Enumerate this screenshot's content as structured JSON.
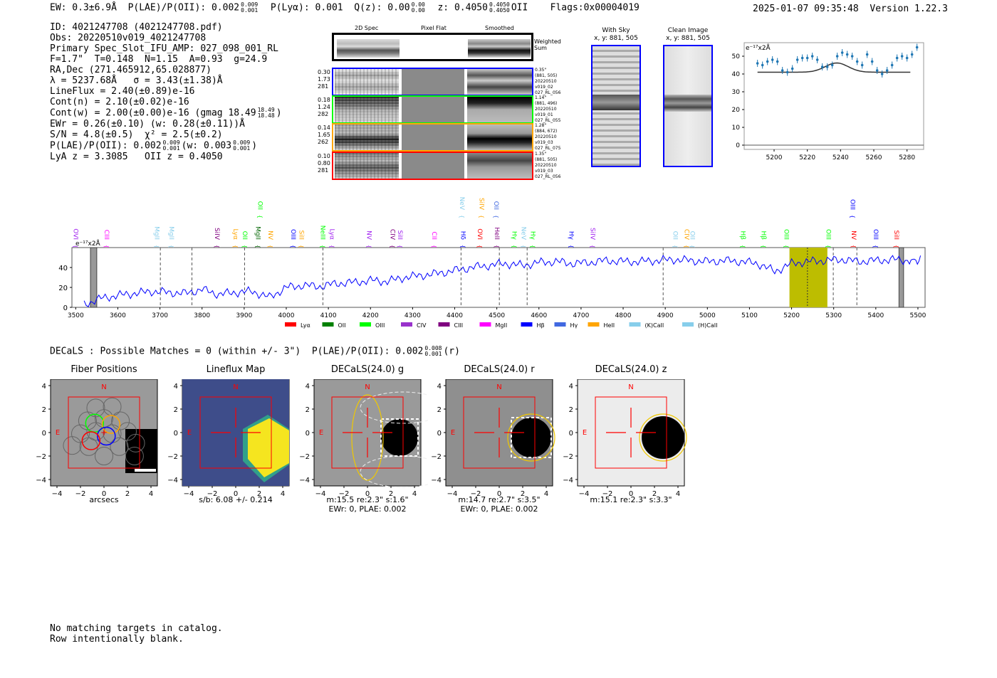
{
  "header": {
    "ew": "EW: 0.3±6.9Å",
    "plae_label": "P(LAE)/P(OII): 0.002",
    "plae_hi": "0.009",
    "plae_lo": "0.001",
    "plya": "P(Lyα): 0.001",
    "qz": "Q(z): 0.00",
    "qz_hi": "0.00",
    "qz_lo": "0.00",
    "z": "z: 0.4050",
    "z_hi": "0.4050",
    "z_lo": "0.4050",
    "z_line": "OII",
    "flags": "Flags:0x00004019",
    "timestamp": "2025-01-07 09:35:48",
    "version": "Version 1.22.3"
  },
  "info": {
    "id": "ID: 4021247708 (4021247708.pdf)",
    "obs": "Obs: 20220510v019_4021247708",
    "primary": "Primary Spec_Slot_IFU_AMP: 027_098_001_RL",
    "params": "F=1.7\"  T=0.148  N=1.15  A=0.93  g=24.9",
    "radec": "RA,Dec (271.465912,65.028877)",
    "lambda": "λ = 5237.68Å   σ = 3.43(±1.38)Å",
    "lineflux": "LineFlux = 2.40(±0.89)e-16",
    "contn": "Cont(n) = 2.10(±0.02)e-16",
    "contw": "Cont(w) = 2.00(±0.00)e-16 (gmag 18.49",
    "contw_hi": "18.49",
    "contw_lo": "18.48",
    "contw_end": ")",
    "ewr": "EWr = 0.26(±0.10) (w: 0.28(±0.11))Å",
    "sn": "S/N = 4.8(±0.5)  χ² = 2.5(±0.2)",
    "plae": "P(LAE)/P(OII): 0.002",
    "plae_hi": "0.009",
    "plae_lo": "0.001",
    "plae_w": "(w: 0.003",
    "plae_w_hi": "0.009",
    "plae_w_lo": "0.001",
    "plae_w_end": ")",
    "z": "LyA z = 3.3085   OII z = 0.4050"
  },
  "cutouts": {
    "headers": [
      "2D Spec",
      "Pixel Flat",
      "Smoothed"
    ],
    "weighted_label": "Weighted Sum",
    "fibers": [
      {
        "color": "#0000ff",
        "stats": [
          "0.30",
          "1.73",
          "281"
        ],
        "meta": [
          "0.35\"",
          "(881, 505)",
          "20220510",
          "v019_02",
          "027_RL_056"
        ]
      },
      {
        "color": "#00ff00",
        "stats": [
          "0.18",
          "1.24",
          "282"
        ],
        "meta": [
          "1.14\"",
          "(881, 496)",
          "20220510",
          "v019_01",
          "027_RL_055"
        ]
      },
      {
        "color": "#ffa500",
        "stats": [
          "0.14",
          "1.65",
          "262"
        ],
        "meta": [
          "1.28\"",
          "(884, 672)",
          "20220510",
          "v019_03",
          "027_RL_075"
        ]
      },
      {
        "color": "#ff0000",
        "stats": [
          "0.10",
          "0.80",
          "281"
        ],
        "meta": [
          "1.35\"",
          "(881, 505)",
          "20220510",
          "v019_03",
          "027_RL_056"
        ]
      }
    ]
  },
  "sky": {
    "with_sky_title": "With Sky",
    "with_sky_xy": "x, y: 881, 505",
    "clean_title": "Clean Image",
    "clean_xy": "x, y: 881, 505"
  },
  "chart_data": [
    {
      "type": "scatter",
      "name": "line-fit-inset",
      "unit_label": "e⁻¹⁷x2Å",
      "xlim": [
        5182,
        5290
      ],
      "ylim": [
        -2.4,
        57.6
      ],
      "xticks": [
        "5200",
        "5220",
        "5240",
        "5260",
        "5280"
      ],
      "yticks": [
        "0",
        "10",
        "20",
        "30",
        "40",
        "50"
      ],
      "x": [
        5190,
        5193,
        5196,
        5199,
        5202,
        5205,
        5208,
        5211,
        5214,
        5217,
        5220,
        5223,
        5226,
        5229,
        5232,
        5235,
        5238,
        5241,
        5244,
        5247,
        5250,
        5253,
        5256,
        5259,
        5262,
        5265,
        5268,
        5271,
        5274,
        5277,
        5280,
        5283,
        5286
      ],
      "y": [
        46,
        45,
        47,
        48,
        47,
        42,
        41,
        43,
        48,
        49,
        49,
        50,
        48,
        44,
        44,
        45,
        50,
        52,
        51,
        50,
        47,
        45,
        51,
        47,
        42,
        40,
        42,
        45,
        49,
        50,
        49,
        51,
        55
      ],
      "fit": {
        "continuum": 41,
        "amplitude": 5.2,
        "center": 5237.68,
        "sigma": 3.43
      }
    },
    {
      "type": "line",
      "name": "full-spectrum",
      "unit_label": "e⁻¹⁷x2Å",
      "xlim": [
        3491,
        5517
      ],
      "ylim": [
        0,
        60
      ],
      "xticks": [
        "3500",
        "3600",
        "3700",
        "3800",
        "3900",
        "4000",
        "4100",
        "4200",
        "4300",
        "4400",
        "4500",
        "4600",
        "4700",
        "4800",
        "4900",
        "5000",
        "5100",
        "5200",
        "5300",
        "5400",
        "5500"
      ],
      "yticks": [
        "0",
        "20",
        "40"
      ],
      "x": [
        3520,
        3560,
        3600,
        3640,
        3680,
        3720,
        3760,
        3800,
        3840,
        3880,
        3920,
        3960,
        4000,
        4040,
        4080,
        4120,
        4160,
        4200,
        4240,
        4280,
        4320,
        4360,
        4400,
        4440,
        4480,
        4520,
        4560,
        4600,
        4640,
        4680,
        4720,
        4760,
        4800,
        4840,
        4880,
        4920,
        4960,
        5000,
        5040,
        5080,
        5120,
        5160,
        5200,
        5240,
        5280,
        5320,
        5360,
        5400,
        5440,
        5480,
        5510
      ],
      "y": [
        3,
        9,
        12,
        14,
        16,
        15,
        14,
        18,
        13,
        15,
        16,
        10,
        20,
        22,
        21,
        24,
        25,
        27,
        26,
        30,
        32,
        34,
        37,
        40,
        42,
        44,
        42,
        45,
        46,
        44,
        45,
        47,
        46,
        46,
        47,
        48,
        47,
        46,
        47,
        46,
        44,
        36,
        44,
        46,
        47,
        48,
        46,
        47,
        48,
        47,
        47
      ],
      "highlight": [
        5195,
        5285
      ],
      "fit_center": 5237.68,
      "masked": [
        [
          3535,
          3550
        ],
        [
          5455,
          5466
        ]
      ],
      "dashed_lines": [
        3701,
        3776,
        3901,
        4087,
        4415,
        4506,
        4572,
        4895,
        5299,
        5355
      ],
      "line_labels": [
        {
          "name": "OVI",
          "wave": 3500,
          "color": "#a020f0",
          "row": 1
        },
        {
          "name": "CIII",
          "wave": 3574,
          "color": "#ff00ff",
          "row": 1
        },
        {
          "name": "MgII",
          "wave": 3693,
          "color": "#87ceeb",
          "row": 1
        },
        {
          "name": "MgII",
          "wave": 3728,
          "color": "#87ceeb",
          "row": 1
        },
        {
          "name": "SiIV",
          "wave": 3836,
          "color": "#800080",
          "row": 1
        },
        {
          "name": "Lyα",
          "wave": 3880,
          "color": "#ffa500",
          "row": 1
        },
        {
          "name": "OII",
          "wave": 3902,
          "color": "#00ff00",
          "row": 1
        },
        {
          "name": "MgII",
          "wave": 3933,
          "color": "#006400",
          "row": 1
        },
        {
          "name": "OII",
          "wave": 3938,
          "color": "#00ff00",
          "row": 2
        },
        {
          "name": "NV",
          "wave": 3963,
          "color": "#ffa500",
          "row": 1
        },
        {
          "name": "OIII",
          "wave": 4017,
          "color": "#0000ff",
          "row": 1
        },
        {
          "name": "SiII",
          "wave": 4036,
          "color": "#ffa500",
          "row": 1
        },
        {
          "name": "NeIII",
          "wave": 4087,
          "color": "#00ff00",
          "row": 1
        },
        {
          "name": "Lyα",
          "wave": 4109,
          "color": "#a020f0",
          "row": 1
        },
        {
          "name": "NV",
          "wave": 4197,
          "color": "#a020f0",
          "row": 1
        },
        {
          "name": "CIV",
          "wave": 4253,
          "color": "#800080",
          "row": 1
        },
        {
          "name": "SiII",
          "wave": 4271,
          "color": "#a020f0",
          "row": 1
        },
        {
          "name": "CII",
          "wave": 4352,
          "color": "#ff00ff",
          "row": 1
        },
        {
          "name": "Hδ",
          "wave": 4420,
          "color": "#0000ff",
          "row": 1
        },
        {
          "name": "NeV",
          "wave": 4418,
          "color": "#87ceeb",
          "row": 2
        },
        {
          "name": "OVI",
          "wave": 4460,
          "color": "#ff0000",
          "row": 1
        },
        {
          "name": "SiIV",
          "wave": 4464,
          "color": "#ffa500",
          "row": 2
        },
        {
          "name": "HeII",
          "wave": 4501,
          "color": "#800080",
          "row": 1
        },
        {
          "name": "OII",
          "wave": 4499,
          "color": "#4169e1",
          "row": 2
        },
        {
          "name": "Hγ",
          "wave": 4542,
          "color": "#00ff00",
          "row": 1
        },
        {
          "name": "NeV",
          "wave": 4564,
          "color": "#87ceeb",
          "row": 1
        },
        {
          "name": "Hγ",
          "wave": 4586,
          "color": "#00ff00",
          "row": 1
        },
        {
          "name": "Hγ",
          "wave": 4677,
          "color": "#0000ff",
          "row": 1
        },
        {
          "name": "SiIV",
          "wave": 4728,
          "color": "#a020f0",
          "row": 1
        },
        {
          "name": "OII",
          "wave": 4924,
          "color": "#87ceeb",
          "row": 1
        },
        {
          "name": "CIV",
          "wave": 4951,
          "color": "#ffa500",
          "row": 1
        },
        {
          "name": "OII",
          "wave": 4965,
          "color": "#87ceeb",
          "row": 1
        },
        {
          "name": "Hβ",
          "wave": 5085,
          "color": "#00ff00",
          "row": 1
        },
        {
          "name": "Hβ",
          "wave": 5134,
          "color": "#00ff00",
          "row": 1
        },
        {
          "name": "OIII",
          "wave": 5188,
          "color": "#00ff00",
          "row": 1
        },
        {
          "name": "OIII",
          "wave": 5288,
          "color": "#00ff00",
          "row": 1
        },
        {
          "name": "NV",
          "wave": 5348,
          "color": "#ff0000",
          "row": 1
        },
        {
          "name": "OIII",
          "wave": 5345,
          "color": "#0000ff",
          "row": 2
        },
        {
          "name": "OIII",
          "wave": 5400,
          "color": "#0000ff",
          "row": 1
        },
        {
          "name": "SiII",
          "wave": 5449,
          "color": "#ff0000",
          "row": 1
        }
      ],
      "legend": [
        {
          "label": "Lyα",
          "color": "#ff0000"
        },
        {
          "label": "OII",
          "color": "#008000"
        },
        {
          "label": "OIII",
          "color": "#00ff00"
        },
        {
          "label": "CIV",
          "color": "#9932cc"
        },
        {
          "label": "CIII",
          "color": "#800080"
        },
        {
          "label": "MgII",
          "color": "#ff00ff"
        },
        {
          "label": "Hβ",
          "color": "#0000ff"
        },
        {
          "label": "Hγ",
          "color": "#4169e1"
        },
        {
          "label": "HeII",
          "color": "#ffa500"
        },
        {
          "label": "(K)CaII",
          "color": "#87ceeb"
        },
        {
          "label": "(H)CaII",
          "color": "#87ceeb"
        }
      ]
    }
  ],
  "decals": {
    "summary": "DECaLS : Possible Matches = 0 (within +/- 3\")  P(LAE)/P(OII): 0.002",
    "summary_hi": "0.008",
    "summary_lo": "0.001",
    "summary_end": "(r)",
    "ticks": [
      "−4",
      "−2",
      "0",
      "2",
      "4"
    ],
    "compass_n": "N",
    "compass_e": "E",
    "panels": [
      {
        "title": "Fiber Positions",
        "caption": [
          "arcsecs"
        ]
      },
      {
        "title": "Lineflux Map",
        "caption": [
          "s/b: 6.08 +/- 0.214"
        ]
      },
      {
        "title": "DECaLS(24.0) g",
        "caption": [
          "m:15.5  re:2.3\"  s:1.6\"",
          "EWr: 0, PLAE: 0.002"
        ]
      },
      {
        "title": "DECaLS(24.0) r",
        "caption": [
          "m:14.7  re:2.7\"  s:3.5\"",
          "EWr: 0, PLAE: 0.002"
        ]
      },
      {
        "title": "DECaLS(24.0) z",
        "caption": [
          "m:15.1  re:2.3\"  s:3.3\""
        ]
      }
    ]
  },
  "footer": {
    "line1": "No matching targets in catalog.",
    "line2": "Row intentionally blank."
  }
}
